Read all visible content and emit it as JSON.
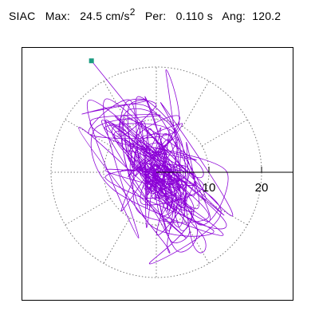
{
  "header": {
    "station": "SIAC",
    "max_label": "Max:",
    "max_value": "24.5",
    "max_unit": "cm/s",
    "max_unit_exp": "2",
    "per_label": "Per:",
    "per_value": "0.110 s",
    "ang_label": "Ang:",
    "ang_value": "120.2"
  },
  "chart_data": {
    "type": "polar-particle-motion",
    "radial_ticks": [
      10,
      20
    ],
    "radial_tick_labels": [
      "10",
      "20"
    ],
    "grid_circles": [
      10,
      20
    ],
    "grid_spokes_deg": [
      0,
      30,
      60,
      90,
      120,
      150,
      180,
      210,
      240,
      270,
      300,
      330
    ],
    "grid": true,
    "max_amplitude": 24.5,
    "max_angle_deg": 120.2,
    "trace_color": "#8b00d6",
    "marker_color": "#1a9b80",
    "grid_color": "#777777",
    "major_axis": {
      "angle_deg": 120.2,
      "extent": 17.0
    },
    "minor_axis_scale": 0.55,
    "cycles": 230,
    "seed": 7
  }
}
